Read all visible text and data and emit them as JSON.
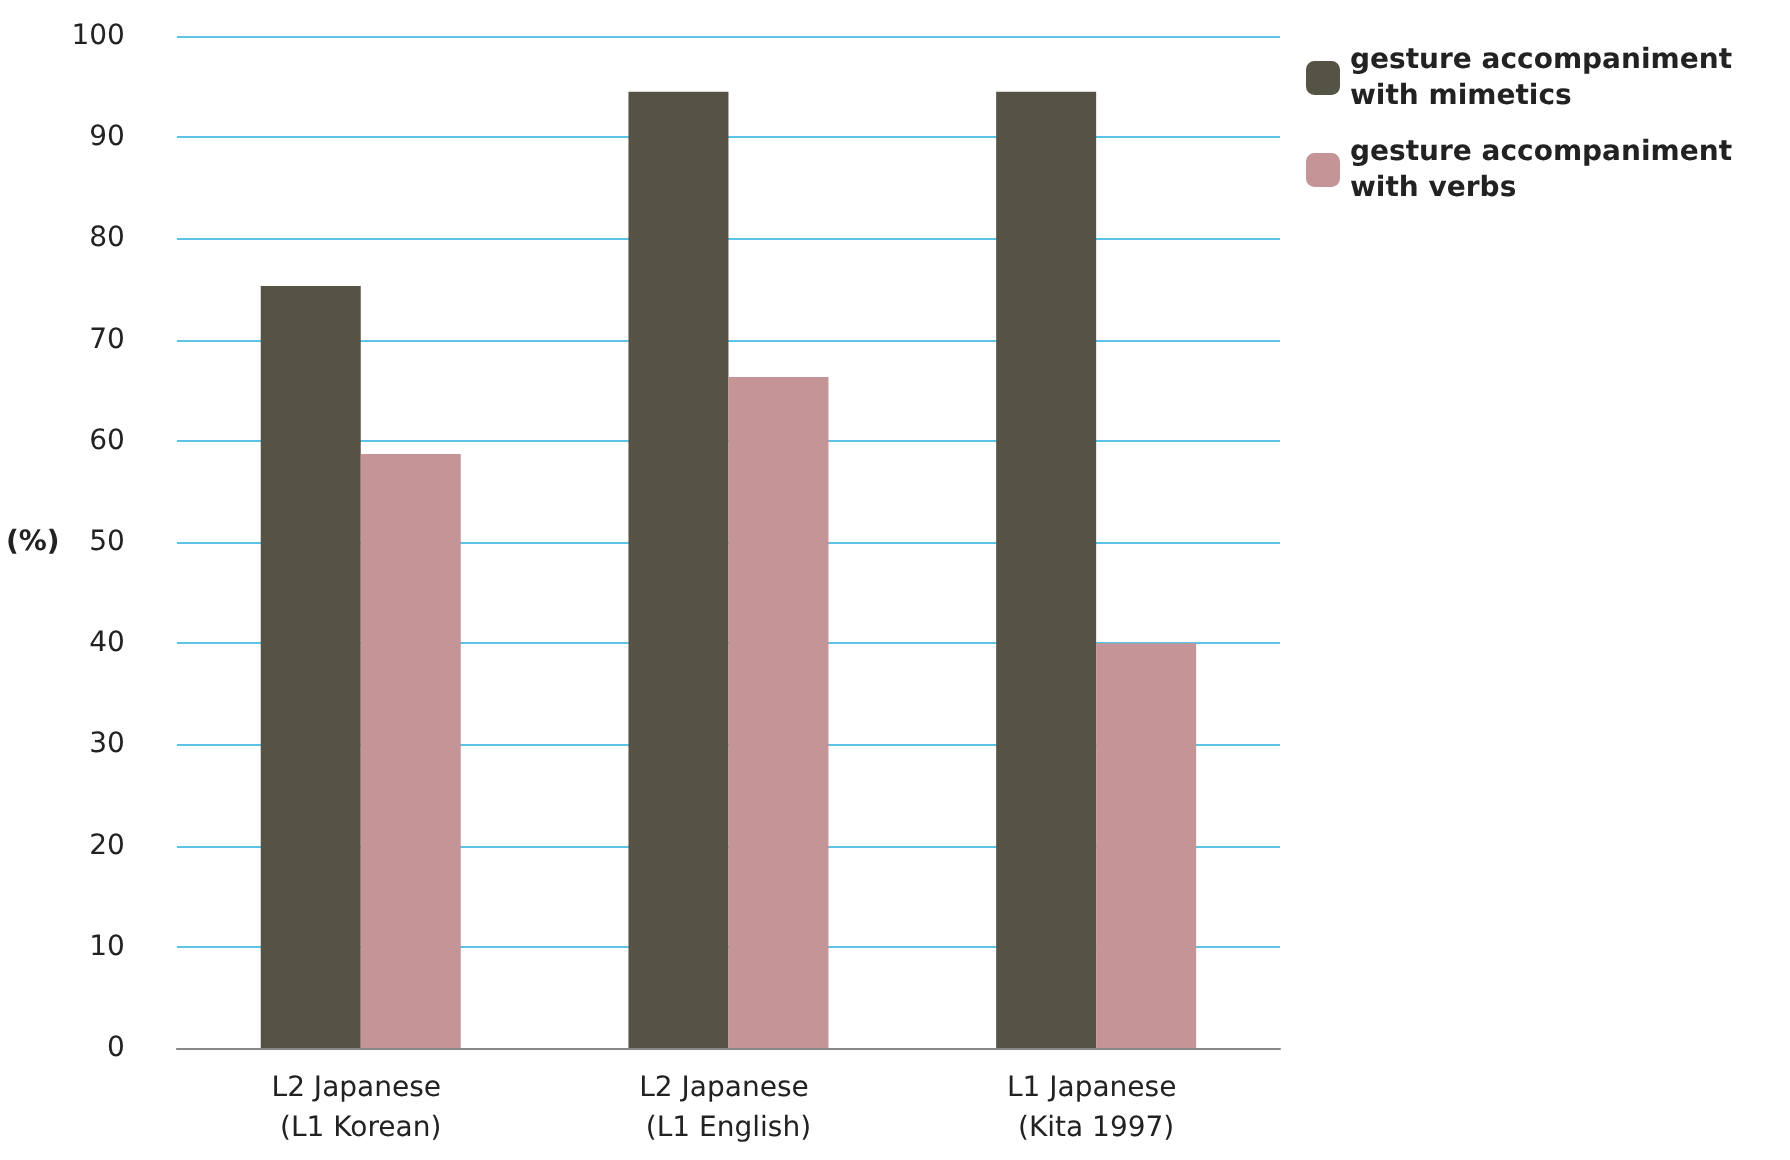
{
  "chart_data": {
    "type": "bar",
    "ylabel": "(%)",
    "categories": [
      "L2 Japanese (L1 Korean)",
      "L2 Japanese (L1 English)",
      "L1 Japanese (Kita 1997)"
    ],
    "series": [
      {
        "name": "gesture accompaniment with mimetics",
        "color": "#555344",
        "values": [
          75.3,
          94.5,
          94.5
        ]
      },
      {
        "name": "gesture accompaniment with verbs",
        "color": "#c49496",
        "values": [
          58.7,
          66.3,
          40.0
        ]
      }
    ],
    "ylim": [
      0,
      100
    ],
    "yticks": [
      0,
      10,
      20,
      30,
      40,
      50,
      60,
      70,
      80,
      90,
      100
    ],
    "grid": "y",
    "legend": "top right"
  }
}
